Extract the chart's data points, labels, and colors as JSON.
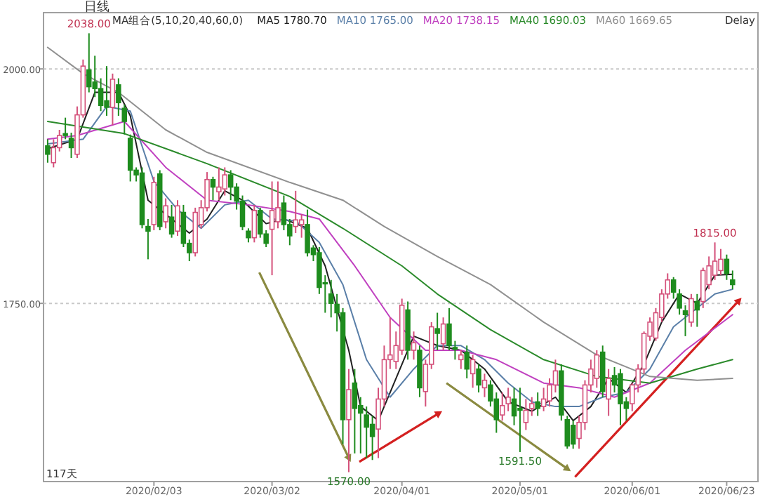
{
  "chart_data": {
    "type": "candlestick",
    "subtitle": "日线",
    "legend_title": "MA组合(5,10,20,40,60,0)",
    "legend": "top",
    "grid": "y",
    "ylim": [
      1560,
      2060
    ],
    "yticks": [
      {
        "value": 2000,
        "label": "2000.00"
      },
      {
        "value": 1750,
        "label": "1750.00"
      }
    ],
    "categories": [
      null,
      null,
      null,
      null,
      null,
      null,
      null,
      null,
      null,
      null,
      null,
      null,
      null,
      null,
      null,
      null,
      null,
      null,
      "2020/02/03",
      null,
      null,
      null,
      null,
      null,
      null,
      null,
      null,
      null,
      null,
      null,
      null,
      null,
      null,
      null,
      null,
      null,
      null,
      null,
      "2020/03/02",
      null,
      null,
      null,
      null,
      null,
      null,
      null,
      null,
      null,
      null,
      null,
      null,
      null,
      null,
      null,
      null,
      null,
      null,
      null,
      null,
      null,
      "2020/04/01",
      null,
      null,
      null,
      null,
      null,
      null,
      null,
      null,
      null,
      null,
      null,
      null,
      null,
      null,
      null,
      null,
      null,
      null,
      null,
      "2020/05/01",
      null,
      null,
      null,
      null,
      null,
      null,
      null,
      null,
      null,
      null,
      null,
      null,
      null,
      null,
      null,
      null,
      null,
      null,
      "2020/06/01",
      null,
      null,
      null,
      null,
      null,
      null,
      null,
      null,
      null,
      null,
      null,
      null,
      null,
      null,
      null,
      "2020/06/23",
      null
    ],
    "ohlc": [
      [
        1918,
        1925,
        1900,
        1909
      ],
      [
        1900,
        1925,
        1895,
        1916
      ],
      [
        1916,
        1935,
        1912,
        1929
      ],
      [
        1931,
        1948,
        1925,
        1929
      ],
      [
        1926,
        1932,
        1905,
        1916
      ],
      [
        1909,
        1960,
        1905,
        1951
      ],
      [
        1951,
        2010,
        1948,
        2003
      ],
      [
        1999,
        2038,
        1975,
        1981
      ],
      [
        1986,
        2014,
        1970,
        1979
      ],
      [
        1979,
        1990,
        1955,
        1961
      ],
      [
        1966,
        2003,
        1950,
        1959
      ],
      [
        1959,
        1995,
        1940,
        1989
      ],
      [
        1983,
        1990,
        1950,
        1964
      ],
      [
        1958,
        1962,
        1930,
        1944
      ],
      [
        1926,
        1930,
        1880,
        1892
      ],
      [
        1892,
        1895,
        1880,
        1887
      ],
      [
        1889,
        1895,
        1830,
        1834
      ],
      [
        1832,
        1840,
        1797,
        1827
      ],
      [
        1834,
        1885,
        1828,
        1879
      ],
      [
        1888,
        1892,
        1828,
        1832
      ],
      [
        1837,
        1862,
        1830,
        1854
      ],
      [
        1842,
        1855,
        1820,
        1824
      ],
      [
        1827,
        1860,
        1822,
        1854
      ],
      [
        1847,
        1855,
        1810,
        1814
      ],
      [
        1814,
        1818,
        1795,
        1804
      ],
      [
        1804,
        1852,
        1800,
        1847
      ],
      [
        1834,
        1860,
        1830,
        1852
      ],
      [
        1852,
        1890,
        1848,
        1882
      ],
      [
        1882,
        1885,
        1860,
        1874
      ],
      [
        1869,
        1895,
        1860,
        1874
      ],
      [
        1872,
        1895,
        1865,
        1887
      ],
      [
        1887,
        1892,
        1860,
        1874
      ],
      [
        1874,
        1878,
        1850,
        1859
      ],
      [
        1859,
        1865,
        1828,
        1832
      ],
      [
        1827,
        1830,
        1815,
        1820
      ],
      [
        1820,
        1855,
        1815,
        1849
      ],
      [
        1849,
        1852,
        1820,
        1824
      ],
      [
        1824,
        1828,
        1810,
        1814
      ],
      [
        1829,
        1880,
        1780,
        1849
      ],
      [
        1837,
        1880,
        1830,
        1852
      ],
      [
        1857,
        1865,
        1828,
        1834
      ],
      [
        1834,
        1840,
        1812,
        1822
      ],
      [
        1832,
        1870,
        1825,
        1839
      ],
      [
        1834,
        1845,
        1820,
        1839
      ],
      [
        1834,
        1850,
        1800,
        1804
      ],
      [
        1809,
        1812,
        1795,
        1802
      ],
      [
        1804,
        1810,
        1760,
        1767
      ],
      [
        1772,
        1780,
        1740,
        1771
      ],
      [
        1760,
        1775,
        1735,
        1750
      ],
      [
        1749,
        1760,
        1720,
        1740
      ],
      [
        1740,
        1745,
        1600,
        1626
      ],
      [
        1626,
        1680,
        1570,
        1658
      ],
      [
        1665,
        1680,
        1590,
        1638
      ],
      [
        1641,
        1650,
        1590,
        1633
      ],
      [
        1631,
        1640,
        1585,
        1618
      ],
      [
        1621,
        1630,
        1583,
        1608
      ],
      [
        1616,
        1660,
        1585,
        1648
      ],
      [
        1648,
        1705,
        1640,
        1690
      ],
      [
        1690,
        1735,
        1680,
        1695
      ],
      [
        1688,
        1720,
        1680,
        1705
      ],
      [
        1700,
        1755,
        1695,
        1748
      ],
      [
        1743,
        1752,
        1690,
        1700
      ],
      [
        1700,
        1720,
        1690,
        1708
      ],
      [
        1700,
        1705,
        1650,
        1660
      ],
      [
        1656,
        1690,
        1640,
        1685
      ],
      [
        1685,
        1730,
        1680,
        1725
      ],
      [
        1723,
        1740,
        1700,
        1718
      ],
      [
        1707,
        1735,
        1700,
        1728
      ],
      [
        1728,
        1745,
        1700,
        1705
      ],
      [
        1703,
        1710,
        1690,
        1701
      ],
      [
        1690,
        1700,
        1680,
        1695
      ],
      [
        1698,
        1705,
        1670,
        1680
      ],
      [
        1675,
        1695,
        1660,
        1690
      ],
      [
        1680,
        1685,
        1655,
        1663
      ],
      [
        1660,
        1675,
        1650,
        1668
      ],
      [
        1663,
        1668,
        1640,
        1646
      ],
      [
        1648,
        1655,
        1612,
        1626
      ],
      [
        1631,
        1655,
        1625,
        1641
      ],
      [
        1643,
        1660,
        1635,
        1650
      ],
      [
        1648,
        1660,
        1620,
        1630
      ],
      [
        1638,
        1660,
        1591.5,
        1636
      ],
      [
        1623,
        1648,
        1615,
        1636
      ],
      [
        1638,
        1650,
        1630,
        1643
      ],
      [
        1645,
        1655,
        1630,
        1638
      ],
      [
        1640,
        1660,
        1635,
        1648
      ],
      [
        1646,
        1670,
        1640,
        1663
      ],
      [
        1663,
        1690,
        1655,
        1678
      ],
      [
        1678,
        1685,
        1625,
        1631
      ],
      [
        1626,
        1630,
        1595,
        1598
      ],
      [
        1620,
        1625,
        1595,
        1600
      ],
      [
        1606,
        1630,
        1595,
        1623
      ],
      [
        1623,
        1668,
        1615,
        1663
      ],
      [
        1663,
        1690,
        1655,
        1680
      ],
      [
        1670,
        1700,
        1660,
        1695
      ],
      [
        1698,
        1705,
        1650,
        1656
      ],
      [
        1648,
        1680,
        1630,
        1670
      ],
      [
        1673,
        1682,
        1655,
        1663
      ],
      [
        1675,
        1680,
        1620,
        1643
      ],
      [
        1645,
        1650,
        1625,
        1638
      ],
      [
        1643,
        1665,
        1635,
        1663
      ],
      [
        1663,
        1685,
        1655,
        1680
      ],
      [
        1680,
        1720,
        1675,
        1718
      ],
      [
        1715,
        1735,
        1710,
        1730
      ],
      [
        1713,
        1745,
        1710,
        1740
      ],
      [
        1735,
        1765,
        1730,
        1760
      ],
      [
        1760,
        1782,
        1755,
        1775
      ],
      [
        1775,
        1778,
        1755,
        1762
      ],
      [
        1760,
        1765,
        1738,
        1745
      ],
      [
        1742,
        1748,
        1715,
        1738
      ],
      [
        1730,
        1760,
        1725,
        1755
      ],
      [
        1752,
        1760,
        1725,
        1743
      ],
      [
        1752,
        1788,
        1745,
        1785
      ],
      [
        1770,
        1800,
        1765,
        1790
      ],
      [
        1780,
        1815,
        1775,
        1795
      ],
      [
        1785,
        1808,
        1780,
        1797
      ],
      [
        1797,
        1802,
        1775,
        1782
      ],
      [
        1775,
        1785,
        1765,
        1770
      ]
    ],
    "colors": [
      "#1e8c1e",
      "#d4507a",
      "#d4507a",
      "#1e8c1e",
      "#1e8c1e",
      "#d4507a",
      "#d4507a",
      "#1e8c1e",
      "#1e8c1e",
      "#1e8c1e",
      "#1e8c1e",
      "#d4507a",
      "#1e8c1e",
      "#1e8c1e",
      "#1e8c1e",
      "#1e8c1e",
      "#1e8c1e",
      "#1e8c1e",
      "#d4507a",
      "#1e8c1e",
      "#d4507a",
      "#1e8c1e",
      "#d4507a",
      "#1e8c1e",
      "#1e8c1e",
      "#d4507a",
      "#d4507a",
      "#d4507a",
      "#1e8c1e",
      "#d4507a",
      "#d4507a",
      "#1e8c1e",
      "#1e8c1e",
      "#1e8c1e",
      "#1e8c1e",
      "#d4507a",
      "#1e8c1e",
      "#1e8c1e",
      "#d4507a",
      "#d4507a",
      "#1e8c1e",
      "#1e8c1e",
      "#d4507a",
      "#d4507a",
      "#1e8c1e",
      "#1e8c1e",
      "#1e8c1e",
      "#1e8c1e",
      "#1e8c1e",
      "#1e8c1e",
      "#1e8c1e",
      "#d4507a",
      "#1e8c1e",
      "#1e8c1e",
      "#1e8c1e",
      "#1e8c1e",
      "#d4507a",
      "#d4507a",
      "#d4507a",
      "#d4507a",
      "#d4507a",
      "#1e8c1e",
      "#d4507a",
      "#1e8c1e",
      "#d4507a",
      "#d4507a",
      "#1e8c1e",
      "#d4507a",
      "#1e8c1e",
      "#1e8c1e",
      "#d4507a",
      "#1e8c1e",
      "#d4507a",
      "#1e8c1e",
      "#d4507a",
      "#1e8c1e",
      "#1e8c1e",
      "#d4507a",
      "#d4507a",
      "#1e8c1e",
      "#1e8c1e",
      "#d4507a",
      "#d4507a",
      "#1e8c1e",
      "#d4507a",
      "#d4507a",
      "#d4507a",
      "#1e8c1e",
      "#1e8c1e",
      "#1e8c1e",
      "#d4507a",
      "#d4507a",
      "#d4507a",
      "#d4507a",
      "#1e8c1e",
      "#d4507a",
      "#1e8c1e",
      "#1e8c1e",
      "#1e8c1e",
      "#d4507a",
      "#d4507a",
      "#d4507a",
      "#d4507a",
      "#d4507a",
      "#d4507a",
      "#d4507a",
      "#1e8c1e",
      "#1e8c1e",
      "#1e8c1e",
      "#d4507a",
      "#1e8c1e",
      "#d4507a",
      "#d4507a",
      "#d4507a",
      "#d4507a",
      "#1e8c1e",
      "#1e8c1e"
    ],
    "series": [
      {
        "name": "MA5 1780.70",
        "type": "line",
        "color": "#202020",
        "values": [
          1915,
          null,
          null,
          null,
          null,
          1925,
          null,
          null,
          1975,
          null,
          null,
          null,
          1975,
          null,
          1950,
          null,
          null,
          1860,
          null,
          null,
          1845,
          null,
          null,
          null,
          1825,
          null,
          null,
          1840,
          null,
          null,
          1870,
          null,
          null,
          1860,
          null,
          null,
          null,
          1835,
          null,
          null,
          1840,
          null,
          null,
          null,
          1830,
          null,
          null,
          1790,
          null,
          null,
          null,
          1700,
          null,
          1640,
          null,
          null,
          1625,
          null,
          null,
          1670,
          null,
          null,
          1715,
          null,
          null,
          null,
          1705,
          null,
          null,
          null,
          1700,
          null,
          null,
          null,
          1680,
          null,
          null,
          null,
          1645,
          null,
          null,
          null,
          1635,
          null,
          null,
          null,
          1650,
          null,
          null,
          1625,
          null,
          null,
          1640,
          null,
          null,
          1670,
          null,
          null,
          1655,
          null,
          null,
          1685,
          null,
          null,
          1730,
          null,
          null,
          1760,
          null,
          null,
          1750,
          null,
          null,
          1780,
          null,
          null,
          1781
        ]
      },
      {
        "name": "MA10 1765.00",
        "type": "line",
        "color": "#5a7fa8",
        "values": [
          1920,
          null,
          null,
          null,
          null,
          null,
          1925,
          null,
          null,
          null,
          1960,
          null,
          null,
          null,
          1955,
          null,
          null,
          null,
          1880,
          null,
          null,
          null,
          1850,
          null,
          null,
          null,
          1830,
          null,
          null,
          null,
          1855,
          null,
          null,
          null,
          1860,
          null,
          null,
          null,
          1840,
          null,
          null,
          null,
          1838,
          null,
          null,
          null,
          1815,
          null,
          null,
          null,
          1770,
          null,
          null,
          null,
          1690,
          null,
          null,
          null,
          1650,
          null,
          null,
          null,
          1680,
          null,
          null,
          null,
          1705,
          null,
          null,
          null,
          1705,
          null,
          null,
          null,
          1690,
          null,
          null,
          null,
          1665,
          null,
          null,
          null,
          1645,
          null,
          null,
          null,
          1640,
          null,
          null,
          null,
          1640,
          null,
          null,
          null,
          1650,
          null,
          null,
          null,
          1655,
          null,
          null,
          null,
          1680,
          null,
          null,
          null,
          1725,
          null,
          null,
          null,
          1745,
          null,
          null,
          1760,
          null,
          null,
          1765
        ]
      },
      {
        "name": "MA20 1738.15",
        "type": "line",
        "color": "#c040c0",
        "values": [
          1925,
          null,
          null,
          null,
          null,
          1929,
          null,
          null,
          null,
          null,
          null,
          null,
          null,
          1944,
          null,
          null,
          null,
          null,
          null,
          null,
          1895,
          null,
          null,
          null,
          null,
          null,
          null,
          1860,
          null,
          null,
          null,
          null,
          null,
          null,
          1855,
          null,
          null,
          null,
          null,
          null,
          null,
          1848,
          null,
          null,
          null,
          null,
          1840,
          null,
          null,
          null,
          null,
          null,
          1790,
          null,
          null,
          null,
          null,
          null,
          1735,
          null,
          null,
          null,
          null,
          null,
          1700,
          null,
          null,
          null,
          null,
          null,
          1700,
          null,
          null,
          null,
          null,
          null,
          1690,
          null,
          null,
          null,
          null,
          null,
          null,
          null,
          1665,
          null,
          null,
          null,
          null,
          null,
          1660,
          null,
          null,
          null,
          null,
          null,
          1650,
          null,
          null,
          null,
          null,
          null,
          1665,
          null,
          null,
          null,
          null,
          null,
          1700,
          null,
          null,
          null,
          null,
          null,
          null,
          null,
          1738
        ]
      },
      {
        "name": "MA40 1690.03",
        "type": "line",
        "color": "#2a8a2a",
        "values": [
          1944,
          null,
          null,
          null,
          null,
          null,
          null,
          null,
          null,
          null,
          null,
          null,
          null,
          1931,
          null,
          null,
          null,
          null,
          null,
          null,
          null,
          null,
          null,
          null,
          null,
          null,
          null,
          1899,
          null,
          null,
          null,
          null,
          null,
          null,
          null,
          null,
          null,
          null,
          null,
          null,
          null,
          1864,
          null,
          null,
          null,
          null,
          null,
          null,
          null,
          null,
          1830,
          null,
          null,
          null,
          null,
          null,
          null,
          null,
          null,
          null,
          1790,
          null,
          null,
          null,
          null,
          null,
          1760,
          null,
          null,
          null,
          null,
          null,
          null,
          null,
          null,
          1722,
          null,
          null,
          null,
          null,
          null,
          null,
          null,
          null,
          1690,
          null,
          null,
          null,
          null,
          null,
          null,
          null,
          null,
          1672,
          null,
          null,
          null,
          null,
          null,
          null,
          null,
          null,
          1665,
          null,
          null,
          null,
          null,
          null,
          null,
          null,
          1680,
          null,
          null,
          null,
          null,
          null,
          1690
        ]
      },
      {
        "name": "MA60 1669.65",
        "type": "line",
        "color": "#909090",
        "values": [
          2023,
          null,
          null,
          null,
          null,
          null,
          1995,
          null,
          null,
          null,
          null,
          null,
          1975,
          null,
          null,
          null,
          null,
          null,
          null,
          null,
          1935,
          null,
          null,
          null,
          null,
          null,
          null,
          1911,
          null,
          null,
          null,
          null,
          null,
          null,
          null,
          null,
          null,
          null,
          null,
          null,
          null,
          1879,
          null,
          null,
          null,
          null,
          null,
          null,
          null,
          null,
          1860,
          null,
          null,
          null,
          null,
          null,
          null,
          1832,
          null,
          null,
          null,
          null,
          null,
          null,
          null,
          null,
          1800,
          null,
          null,
          null,
          null,
          null,
          null,
          null,
          null,
          1770,
          null,
          null,
          null,
          null,
          null,
          null,
          null,
          null,
          1730,
          null,
          null,
          null,
          null,
          null,
          null,
          null,
          null,
          1695,
          null,
          null,
          null,
          null,
          null,
          null,
          null,
          null,
          1672,
          null,
          null,
          null,
          null,
          null,
          null,
          null,
          1668,
          null,
          null,
          null,
          null,
          null,
          1670
        ]
      }
    ],
    "annotations": [
      "117天",
      "Delay",
      {
        "text": "2038.00",
        "y": 2038
      },
      {
        "text": "1570.00",
        "y": 1570
      },
      {
        "text": "1591.50",
        "y": 1591.5
      },
      {
        "text": "1815.00",
        "y": 1815
      }
    ]
  }
}
